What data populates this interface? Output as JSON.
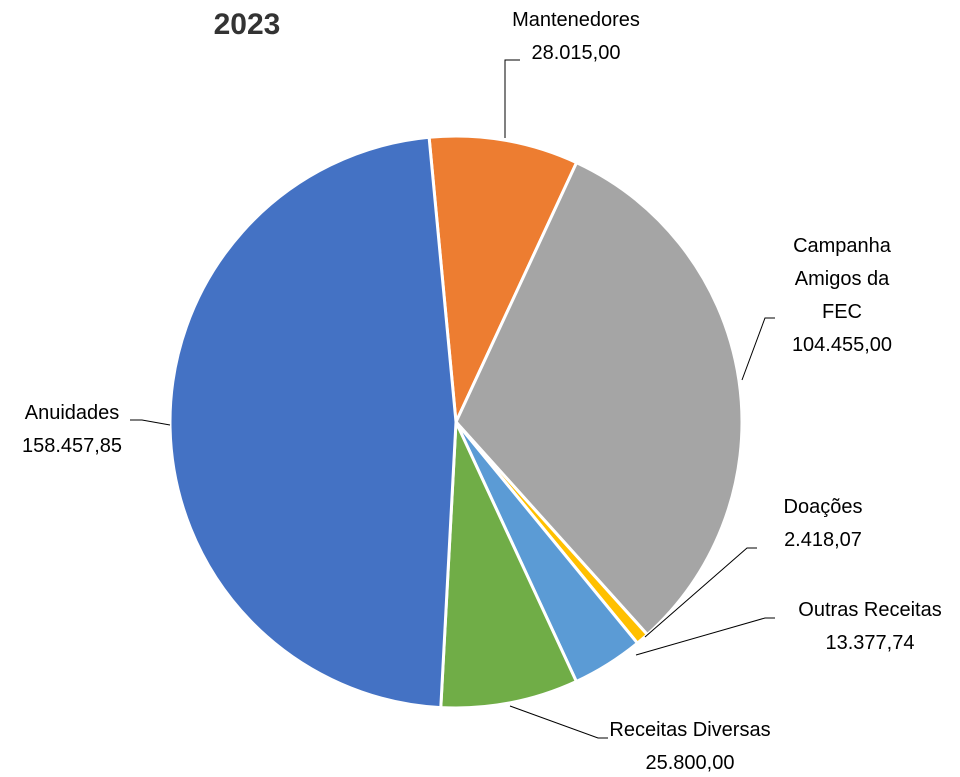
{
  "chart_data": {
    "type": "pie",
    "title": "2023",
    "categories": [
      "Mantenedores",
      "Campanha Amigos da FEC",
      "Doações",
      "Outras Receitas",
      "Receitas Diversas",
      "Anuidades"
    ],
    "values": [
      28015.0,
      104455.0,
      2418.07,
      13377.74,
      25800.0,
      158457.85
    ],
    "value_labels": [
      "28.015,00",
      "104.455,00",
      "2.418,07",
      "13.377,74",
      "25.800,00",
      "158.457,85"
    ],
    "colors": [
      "#ed7d31",
      "#a5a5a5",
      "#ffc000",
      "#5b9bd5",
      "#70ad47",
      "#4472c4"
    ]
  }
}
